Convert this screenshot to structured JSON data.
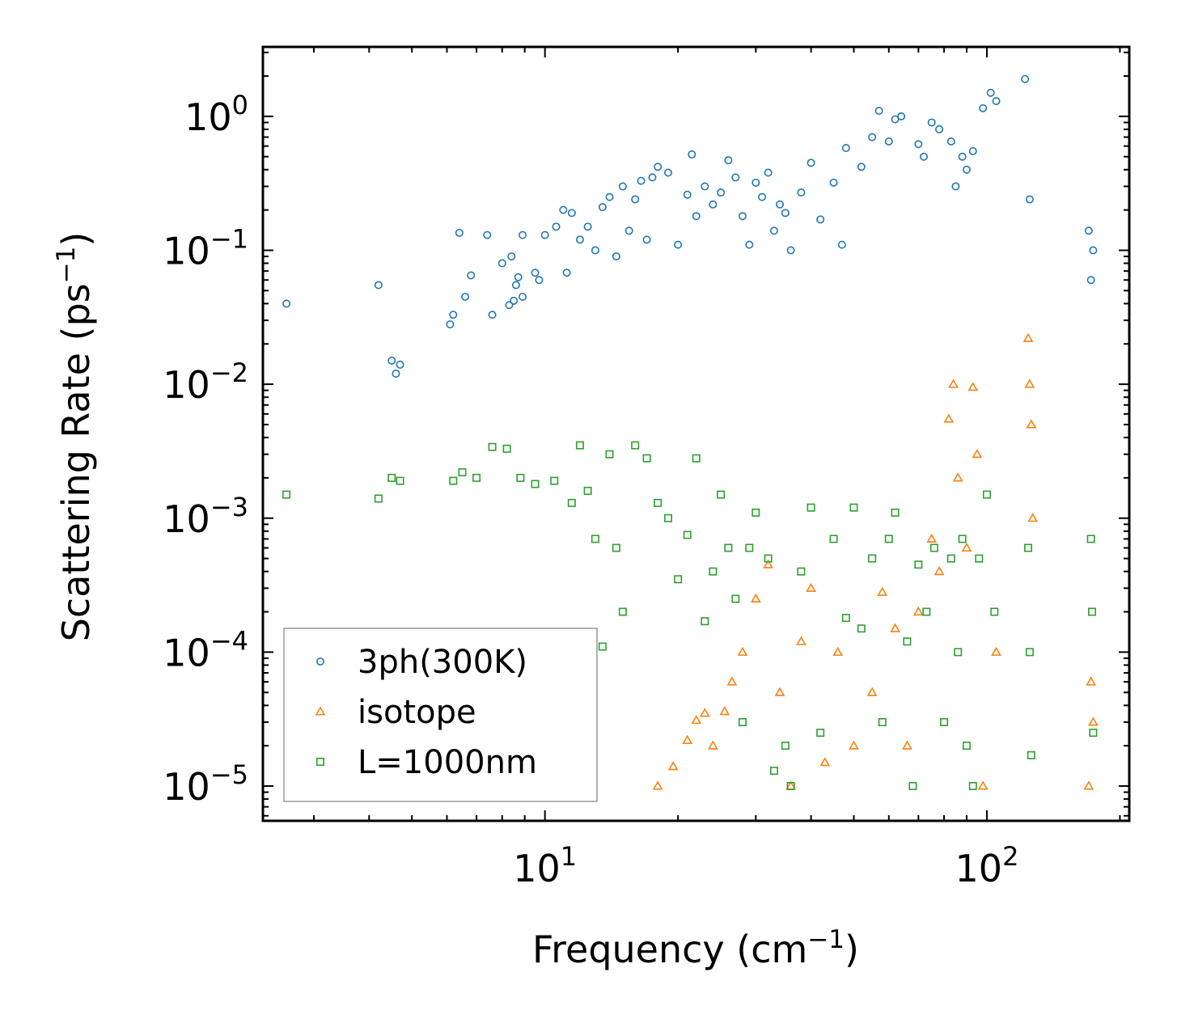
{
  "chart_data": {
    "type": "scatter",
    "title": "",
    "xlabel": "Frequency (cm",
    "xlabel_sup": "−1",
    "xlabel_tail": ")",
    "ylabel": "Scattering Rate (ps",
    "ylabel_sup": "−1",
    "ylabel_tail": ")",
    "xscale": "log",
    "yscale": "log",
    "xlim": [
      2.3,
      210
    ],
    "ylim": [
      5.5e-06,
      3.3
    ],
    "grid": false,
    "legend_position": "lower-left",
    "x_ticks": [
      {
        "value": 10,
        "base": "10",
        "exp": "1"
      },
      {
        "value": 100,
        "base": "10",
        "exp": "2"
      }
    ],
    "y_ticks": [
      {
        "value": 1,
        "base": "10",
        "exp": "0"
      },
      {
        "value": 0.1,
        "base": "10",
        "exp": "−1"
      },
      {
        "value": 0.01,
        "base": "10",
        "exp": "−2"
      },
      {
        "value": 0.001,
        "base": "10",
        "exp": "−3"
      },
      {
        "value": 0.0001,
        "base": "10",
        "exp": "−4"
      },
      {
        "value": 1e-05,
        "base": "10",
        "exp": "−5"
      }
    ],
    "series": [
      {
        "name": "3ph(300K)",
        "marker": "circle",
        "color": "#1f77b4",
        "points": [
          [
            2.6,
            0.04
          ],
          [
            4.2,
            0.055
          ],
          [
            4.5,
            0.015
          ],
          [
            4.7,
            0.014
          ],
          [
            4.6,
            0.012
          ],
          [
            6.1,
            0.028
          ],
          [
            6.2,
            0.033
          ],
          [
            6.4,
            0.135
          ],
          [
            6.6,
            0.045
          ],
          [
            6.8,
            0.065
          ],
          [
            7.4,
            0.13
          ],
          [
            7.6,
            0.033
          ],
          [
            8.0,
            0.08
          ],
          [
            8.3,
            0.039
          ],
          [
            8.4,
            0.09
          ],
          [
            8.5,
            0.042
          ],
          [
            8.6,
            0.055
          ],
          [
            8.7,
            0.063
          ],
          [
            8.9,
            0.045
          ],
          [
            8.9,
            0.13
          ],
          [
            9.5,
            0.068
          ],
          [
            9.7,
            0.06
          ],
          [
            10.0,
            0.13
          ],
          [
            10.6,
            0.15
          ],
          [
            11.2,
            0.068
          ],
          [
            11.0,
            0.2
          ],
          [
            11.5,
            0.19
          ],
          [
            12.0,
            0.12
          ],
          [
            12.5,
            0.15
          ],
          [
            13.0,
            0.1
          ],
          [
            13.5,
            0.21
          ],
          [
            14.0,
            0.25
          ],
          [
            14.5,
            0.09
          ],
          [
            15.0,
            0.3
          ],
          [
            15.5,
            0.14
          ],
          [
            16.0,
            0.24
          ],
          [
            16.5,
            0.33
          ],
          [
            17.0,
            0.12
          ],
          [
            17.5,
            0.35
          ],
          [
            18.0,
            0.42
          ],
          [
            19.0,
            0.38
          ],
          [
            20.0,
            0.11
          ],
          [
            21.0,
            0.26
          ],
          [
            21.5,
            0.52
          ],
          [
            22.0,
            0.18
          ],
          [
            23.0,
            0.3
          ],
          [
            24.0,
            0.22
          ],
          [
            25.0,
            0.27
          ],
          [
            26.0,
            0.47
          ],
          [
            27.0,
            0.35
          ],
          [
            28.0,
            0.18
          ],
          [
            29.0,
            0.11
          ],
          [
            30.0,
            0.32
          ],
          [
            31.0,
            0.25
          ],
          [
            32.0,
            0.38
          ],
          [
            33.0,
            0.14
          ],
          [
            34.0,
            0.22
          ],
          [
            35.0,
            0.19
          ],
          [
            36.0,
            0.1
          ],
          [
            38.0,
            0.27
          ],
          [
            40.0,
            0.45
          ],
          [
            42.0,
            0.17
          ],
          [
            45.0,
            0.32
          ],
          [
            47.0,
            0.11
          ],
          [
            48.0,
            0.58
          ],
          [
            52.0,
            0.42
          ],
          [
            55.0,
            0.7
          ],
          [
            57.0,
            1.1
          ],
          [
            60.0,
            0.65
          ],
          [
            62.0,
            0.95
          ],
          [
            64.0,
            1.0
          ],
          [
            70.0,
            0.62
          ],
          [
            72.0,
            0.5
          ],
          [
            75.0,
            0.9
          ],
          [
            78.0,
            0.8
          ],
          [
            83.0,
            0.65
          ],
          [
            85.0,
            0.3
          ],
          [
            88.0,
            0.5
          ],
          [
            90.0,
            0.4
          ],
          [
            93.0,
            0.55
          ],
          [
            98.0,
            1.15
          ],
          [
            102.0,
            1.5
          ],
          [
            105.0,
            1.3
          ],
          [
            122.0,
            1.9
          ],
          [
            125.0,
            0.24
          ],
          [
            170.0,
            0.14
          ],
          [
            172.0,
            0.06
          ],
          [
            174.0,
            0.1
          ]
        ]
      },
      {
        "name": "isotope",
        "marker": "triangle",
        "color": "#ff7f0e",
        "points": [
          [
            18.0,
            1e-05
          ],
          [
            19.5,
            1.4e-05
          ],
          [
            21.0,
            2.2e-05
          ],
          [
            22.0,
            3.1e-05
          ],
          [
            23.0,
            3.5e-05
          ],
          [
            24.0,
            2e-05
          ],
          [
            25.5,
            3.6e-05
          ],
          [
            26.5,
            6e-05
          ],
          [
            28.0,
            0.0001
          ],
          [
            30.0,
            0.00025
          ],
          [
            32.0,
            0.00045
          ],
          [
            34.0,
            5e-05
          ],
          [
            36.0,
            1e-05
          ],
          [
            38.0,
            0.00012
          ],
          [
            40.0,
            0.0003
          ],
          [
            43.0,
            1.5e-05
          ],
          [
            46.0,
            0.0001
          ],
          [
            50.0,
            2e-05
          ],
          [
            55.0,
            5e-05
          ],
          [
            58.0,
            0.00028
          ],
          [
            62.0,
            0.00015
          ],
          [
            66.0,
            2e-05
          ],
          [
            70.0,
            0.0002
          ],
          [
            75.0,
            0.0007
          ],
          [
            78.0,
            0.0004
          ],
          [
            82.0,
            0.0055
          ],
          [
            84.0,
            0.01
          ],
          [
            86.0,
            0.002
          ],
          [
            90.0,
            0.0006
          ],
          [
            93.0,
            0.0095
          ],
          [
            95.0,
            0.003
          ],
          [
            98.0,
            1e-05
          ],
          [
            105.0,
            0.0001
          ],
          [
            124.0,
            0.022
          ],
          [
            125.0,
            0.01
          ],
          [
            126.0,
            0.005
          ],
          [
            127.0,
            0.001
          ],
          [
            170.0,
            1e-05
          ],
          [
            172.0,
            6e-05
          ],
          [
            174.0,
            3e-05
          ]
        ]
      },
      {
        "name": "L=1000nm",
        "marker": "square",
        "color": "#2ca02c",
        "points": [
          [
            2.6,
            0.0015
          ],
          [
            4.2,
            0.0014
          ],
          [
            4.5,
            0.002
          ],
          [
            4.7,
            0.0019
          ],
          [
            6.2,
            0.0019
          ],
          [
            6.5,
            0.0022
          ],
          [
            7.0,
            0.002
          ],
          [
            7.6,
            0.0034
          ],
          [
            8.2,
            0.0033
          ],
          [
            8.8,
            0.002
          ],
          [
            9.5,
            0.0018
          ],
          [
            10.5,
            0.0019
          ],
          [
            11.5,
            0.0013
          ],
          [
            12.0,
            0.0035
          ],
          [
            12.5,
            0.0016
          ],
          [
            13.0,
            0.0007
          ],
          [
            13.5,
            0.00011
          ],
          [
            14.0,
            0.003
          ],
          [
            14.5,
            0.0006
          ],
          [
            15.0,
            0.0002
          ],
          [
            16.0,
            0.0035
          ],
          [
            17.0,
            0.0028
          ],
          [
            18.0,
            0.0013
          ],
          [
            19.0,
            0.001
          ],
          [
            20.0,
            0.00035
          ],
          [
            21.0,
            0.00075
          ],
          [
            22.0,
            0.0028
          ],
          [
            23.0,
            0.00017
          ],
          [
            24.0,
            0.0004
          ],
          [
            25.0,
            0.0015
          ],
          [
            26.0,
            0.0006
          ],
          [
            27.0,
            0.00025
          ],
          [
            28.0,
            3e-05
          ],
          [
            29.0,
            0.0006
          ],
          [
            30.0,
            0.0011
          ],
          [
            32.0,
            0.0005
          ],
          [
            33.0,
            1.3e-05
          ],
          [
            35.0,
            2e-05
          ],
          [
            36.0,
            1e-05
          ],
          [
            38.0,
            0.0004
          ],
          [
            40.0,
            0.0012
          ],
          [
            42.0,
            2.5e-05
          ],
          [
            45.0,
            0.0007
          ],
          [
            48.0,
            0.00018
          ],
          [
            50.0,
            0.0012
          ],
          [
            52.0,
            0.00015
          ],
          [
            55.0,
            0.0005
          ],
          [
            58.0,
            3e-05
          ],
          [
            60.0,
            0.0007
          ],
          [
            62.0,
            0.0011
          ],
          [
            66.0,
            0.00012
          ],
          [
            68.0,
            1e-05
          ],
          [
            70.0,
            0.00045
          ],
          [
            73.0,
            0.0002
          ],
          [
            76.0,
            0.0006
          ],
          [
            80.0,
            3e-05
          ],
          [
            83.0,
            0.0005
          ],
          [
            86.0,
            0.0001
          ],
          [
            88.0,
            0.0007
          ],
          [
            90.0,
            2e-05
          ],
          [
            93.0,
            1e-05
          ],
          [
            96.0,
            0.0005
          ],
          [
            100.0,
            0.0015
          ],
          [
            104.0,
            0.0002
          ],
          [
            124.0,
            0.0006
          ],
          [
            125.0,
            0.0001
          ],
          [
            126.0,
            1.7e-05
          ],
          [
            172.0,
            0.0007
          ],
          [
            173.0,
            0.0002
          ],
          [
            174.0,
            2.5e-05
          ]
        ]
      }
    ]
  }
}
